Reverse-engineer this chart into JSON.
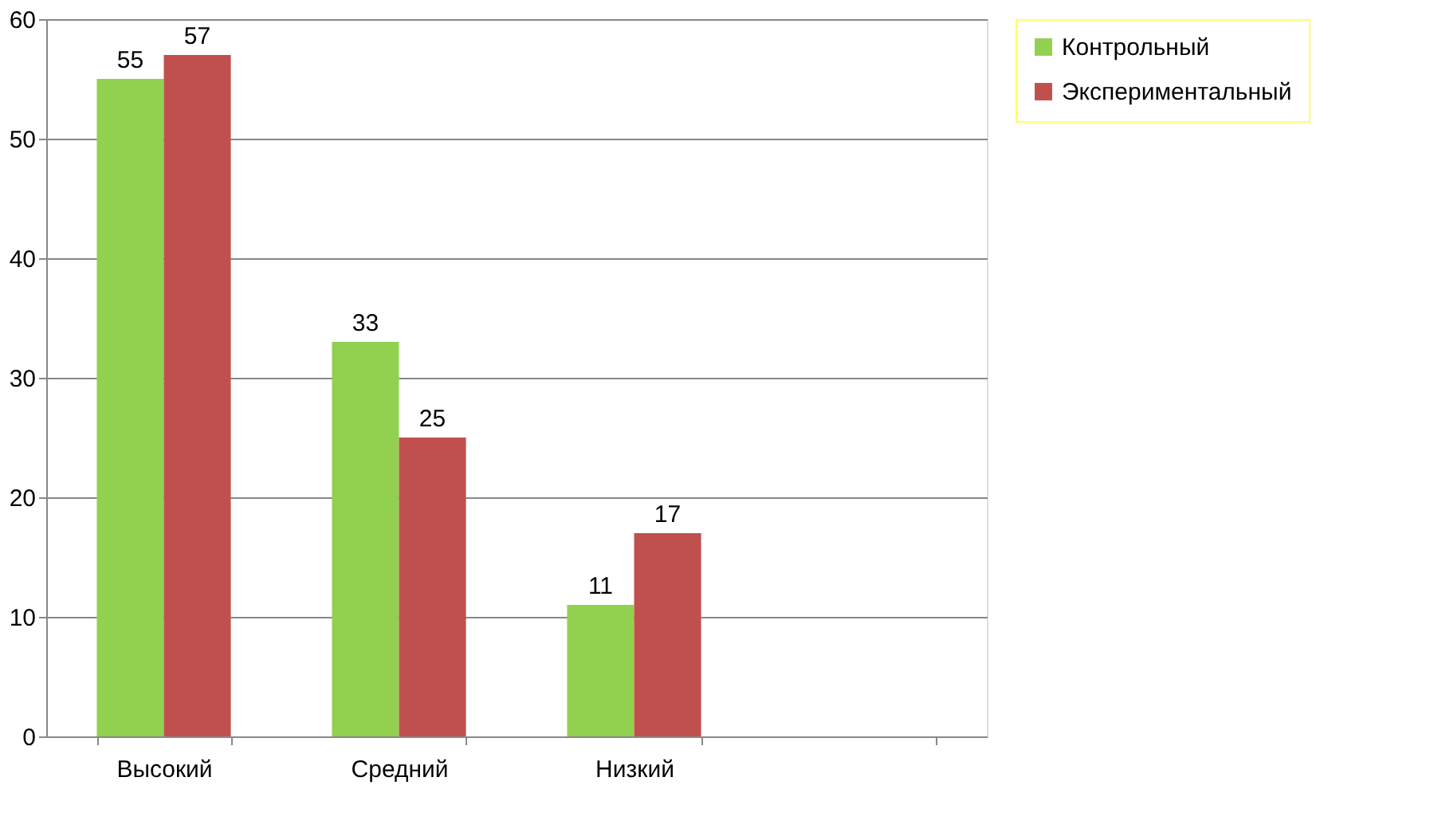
{
  "chart_data": {
    "type": "bar",
    "categories": [
      "Высокий",
      "Средний",
      "Низкий",
      null
    ],
    "series": [
      {
        "name": "Контрольный",
        "color": "#92d050",
        "values": [
          55,
          33,
          11,
          null
        ]
      },
      {
        "name": "Экспериментальный",
        "color": "#c0504d",
        "values": [
          57,
          25,
          17,
          null
        ]
      }
    ],
    "ylim": [
      0,
      60
    ],
    "yticks": [
      0,
      10,
      20,
      30,
      40,
      50,
      60
    ],
    "grid": "y",
    "legend": "right",
    "data_labels": true
  }
}
